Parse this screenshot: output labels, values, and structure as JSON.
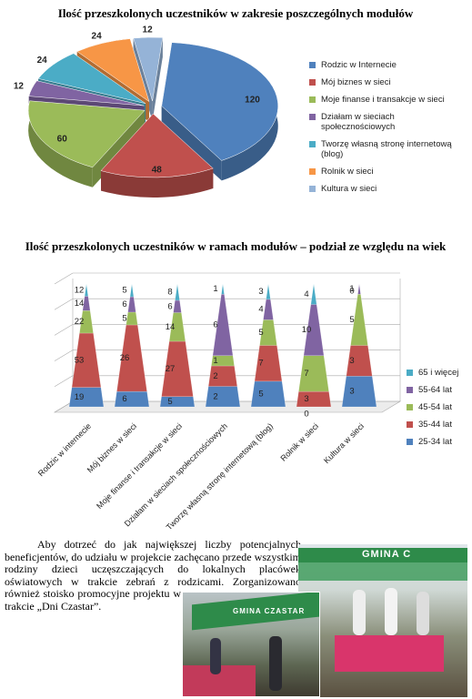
{
  "chart_data": [
    {
      "type": "pie",
      "title": "Ilość przeszkolonych uczestników w zakresie poszczególnych modułów",
      "categories": [
        "Rodzic w Internecie",
        "Mój biznes w sieci",
        "Moje finanse i transakcje w sieci",
        "Działam w sieciach społecznościowych",
        "Tworzę własną stronę internetową (blog)",
        "Rolnik w sieci",
        "Kultura w sieci"
      ],
      "values": [
        120,
        48,
        60,
        12,
        24,
        24,
        12
      ],
      "colors": [
        "#4f81bd",
        "#c0504d",
        "#9bbb59",
        "#8064a2",
        "#4bacc6",
        "#f79646",
        "#95b3d7"
      ],
      "legend": "right"
    },
    {
      "type": "cone",
      "title": "Ilość przeszkolonych uczestników w ramach modułów – podział ze względu na wiek",
      "stacking": "percent",
      "legend": "right",
      "categories": [
        "Rodzic w internecie",
        "Mój biznes w sieci",
        "Moje finanse i transakcje w sieci",
        "Działam w sieciach społecznościowych",
        "Tworzę własną stronę internetową (blog)",
        "Rolnik w sieci",
        "Kultura w sieci"
      ],
      "series": [
        {
          "name": "25-34 lat",
          "color": "#4f81bd",
          "values": [
            19,
            6,
            5,
            2,
            5,
            0,
            3
          ]
        },
        {
          "name": "35-44 lat",
          "color": "#c0504d",
          "values": [
            53,
            26,
            27,
            2,
            7,
            3,
            3
          ]
        },
        {
          "name": "45-54 lat",
          "color": "#9bbb59",
          "values": [
            22,
            5,
            14,
            1,
            5,
            7,
            5
          ]
        },
        {
          "name": "55-64 lat",
          "color": "#8064a2",
          "values": [
            14,
            6,
            6,
            6,
            4,
            10,
            1
          ]
        },
        {
          "name": "65 i więcej",
          "color": "#4bacc6",
          "values": [
            12,
            5,
            8,
            1,
            3,
            4,
            0
          ]
        }
      ]
    }
  ],
  "text": {
    "paragraph": "Aby dotrzeć do jak największej liczby potencjalnych beneficjentów, do udziału w projekcie zachęcano przede wszystkim rodziny dzieci uczęszczających do lokalnych placówek oświatowych w trakcie zebrań z rodzicami. Zorganizowano również stoisko promocyjne projektu w trakcie „Dni Czastar”."
  },
  "photos": [
    {
      "sign": "GMINA C"
    },
    {
      "sign": "GMINA CZASTAR"
    }
  ]
}
